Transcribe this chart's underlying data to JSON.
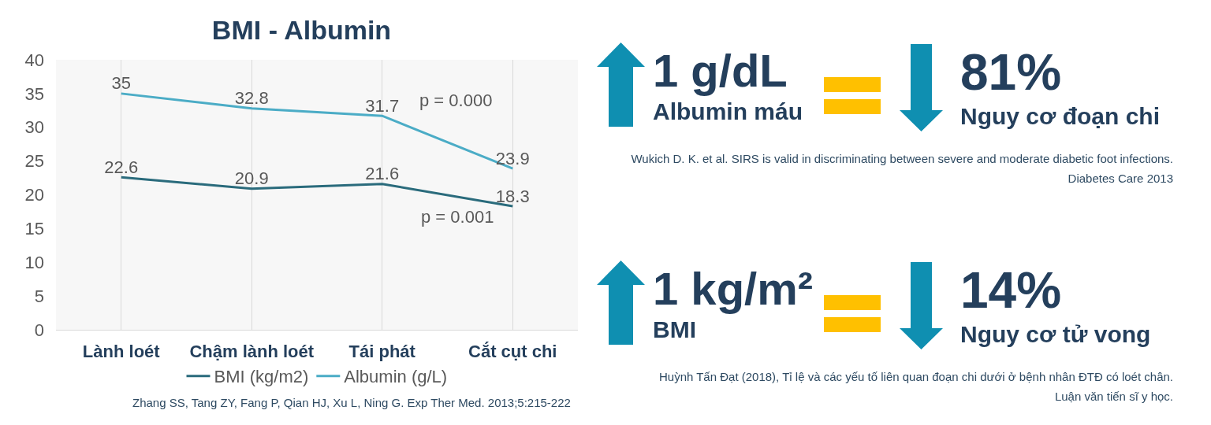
{
  "chart_data": [
    {
      "type": "line",
      "title": "BMI - Albumin",
      "categories": [
        "Lành loét",
        "Chậm lành loét",
        "Tái phát",
        "Cắt cụt chi"
      ],
      "series": [
        {
          "name": "BMI (kg/m2)",
          "color": "#2a6b7c",
          "values": [
            22.6,
            20.9,
            21.6,
            18.3
          ]
        },
        {
          "name": "Albumin (g/L)",
          "color": "#4bacc6",
          "values": [
            35,
            32.8,
            31.7,
            23.9
          ]
        }
      ],
      "ylim": [
        0,
        40
      ],
      "yticks": [
        0,
        5,
        10,
        15,
        20,
        25,
        30,
        35,
        40
      ],
      "grid": "x",
      "legend": "bottom",
      "data_labels": true,
      "annotations": [
        "p = 0.000",
        "p = 0.001",
        "Zhang SS, Tang ZY, Fang P, Qian HJ, Xu L, Ning G. Exp Ther Med. 2013;5:215-222"
      ]
    },
    {
      "type": "other",
      "annotations": [
        "1 g/dL",
        "Albumin máu",
        "81%",
        "Nguy cơ đoạn chi",
        "Wukich D. K. et al. SIRS is valid in discriminating between severe and moderate diabetic foot infections.",
        "Diabetes Care  2013",
        "1 kg/m²",
        "BMI",
        "14%",
        "Nguy cơ tử vong",
        "Huỳnh Tấn Đạt (2018), Tỉ lệ và các yếu tố liên quan đoạn chi dưới ở bệnh nhân ĐTĐ có loét chân.",
        "Luận văn tiến sĩ y học."
      ]
    }
  ]
}
